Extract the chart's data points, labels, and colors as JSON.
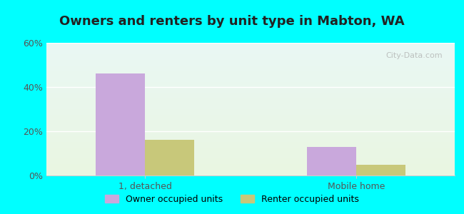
{
  "title": "Owners and renters by unit type in Mabton, WA",
  "categories": [
    "1, detached",
    "Mobile home"
  ],
  "owner_values": [
    46,
    13
  ],
  "renter_values": [
    16,
    5
  ],
  "owner_color": "#c9a8dc",
  "renter_color": "#c8c87a",
  "bg_color_top": "#e8f8ff",
  "bg_color_bottom": "#e8f5e0",
  "outer_bg": "#00ffff",
  "ylim": [
    0,
    60
  ],
  "yticks": [
    0,
    20,
    40,
    60
  ],
  "ytick_labels": [
    "0%",
    "20%",
    "40%",
    "60%"
  ],
  "legend_owner": "Owner occupied units",
  "legend_renter": "Renter occupied units",
  "bar_width": 0.35,
  "group_positions": [
    1.0,
    2.5
  ],
  "watermark": "City-Data.com"
}
